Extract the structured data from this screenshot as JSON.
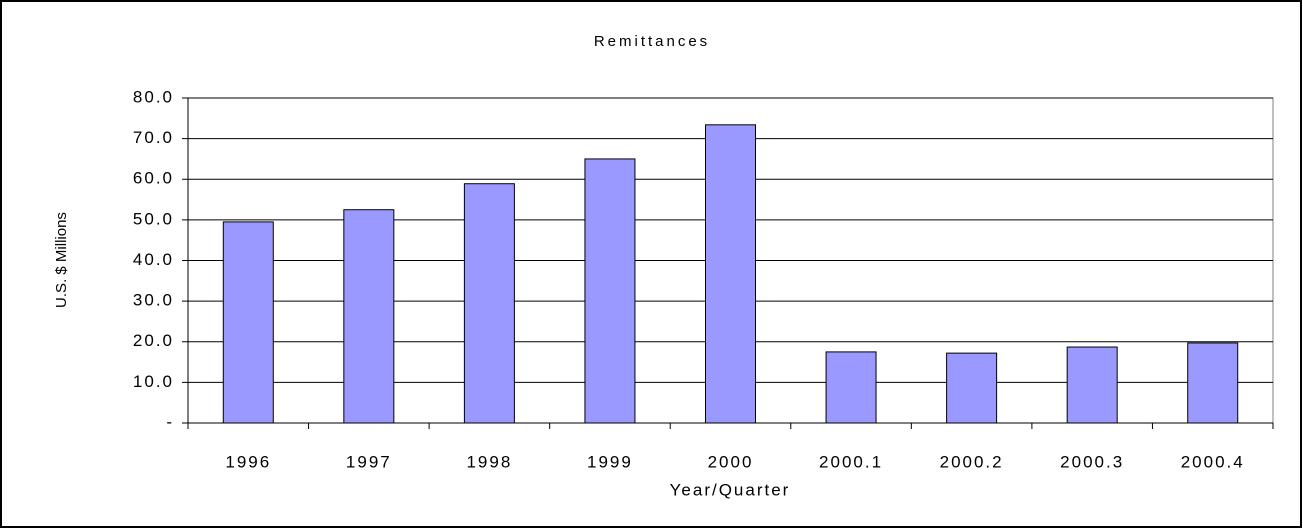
{
  "chart_data": {
    "type": "bar",
    "title": "Remittances",
    "x_label": "Year/Quarter",
    "y_label": "U.S. $ Millions",
    "categories": [
      "1996",
      "1997",
      "1998",
      "1999",
      "2000",
      "2000.1",
      "2000.2",
      "2000.3",
      "2000.4"
    ],
    "values": [
      49.5,
      52.5,
      58.9,
      65.0,
      73.4,
      17.5,
      17.2,
      18.7,
      19.7
    ],
    "color": "#9999ff",
    "ylim": [
      0,
      80
    ],
    "yticks": [
      {
        "value": 0,
        "label": "-"
      },
      {
        "value": 10,
        "label": "10.0"
      },
      {
        "value": 20,
        "label": "20.0"
      },
      {
        "value": 30,
        "label": "30.0"
      },
      {
        "value": 40,
        "label": "40.0"
      },
      {
        "value": 50,
        "label": "50.0"
      },
      {
        "value": 60,
        "label": "60.0"
      },
      {
        "value": 70,
        "label": "70.0"
      },
      {
        "value": 80,
        "label": "80.0"
      }
    ],
    "grid": true
  }
}
